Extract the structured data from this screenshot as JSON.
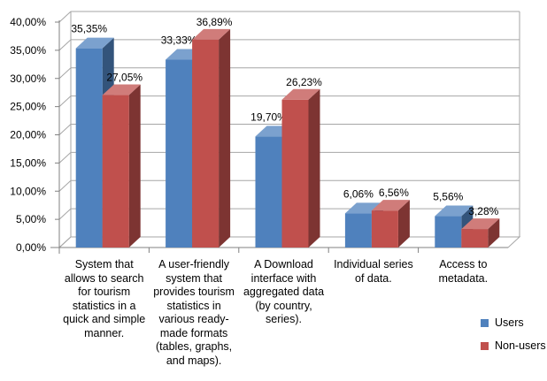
{
  "chart_data": {
    "type": "bar",
    "categories": [
      "System that allows to search for tourism statistics in a quick and simple manner.",
      "A user-friendly system that provides tourism statistics in various ready-made formats (tables, graphs, and maps).",
      "A Download interface with aggregated data (by country, series).",
      "Individual series of data.",
      "Access to metadata."
    ],
    "category_lines": [
      [
        "System that",
        "allows to search",
        "for tourism",
        "statistics in a",
        "quick and simple",
        "manner."
      ],
      [
        "A user-friendly",
        "system that",
        "provides tourism",
        "statistics in",
        "various ready-",
        "made formats",
        "(tables, graphs,",
        "and maps)."
      ],
      [
        "A Download",
        "interface with",
        "aggregated data",
        "(by country,",
        "series)."
      ],
      [
        "Individual series",
        "of data."
      ],
      [
        "Access to",
        "metadata."
      ]
    ],
    "series": [
      {
        "name": "Users",
        "values": [
          35.35,
          33.33,
          19.7,
          6.06,
          5.56
        ],
        "labels": [
          "35,35%",
          "33,33%",
          "19,70%",
          "6,06%",
          "5,56%"
        ],
        "color": "#4f81bd"
      },
      {
        "name": "Non-users",
        "values": [
          27.05,
          36.89,
          26.23,
          6.56,
          3.28
        ],
        "labels": [
          "27,05%",
          "36,89%",
          "26,23%",
          "6,56%",
          "3,28%"
        ],
        "color": "#c0504d"
      }
    ],
    "yticks": [
      "0,00%",
      "5,00%",
      "10,00%",
      "15,00%",
      "20,00%",
      "25,00%",
      "30,00%",
      "35,00%",
      "40,00%"
    ],
    "ylim": [
      0,
      40
    ],
    "grid": true,
    "legend_position": "bottom-right",
    "projection": "3d-column"
  }
}
